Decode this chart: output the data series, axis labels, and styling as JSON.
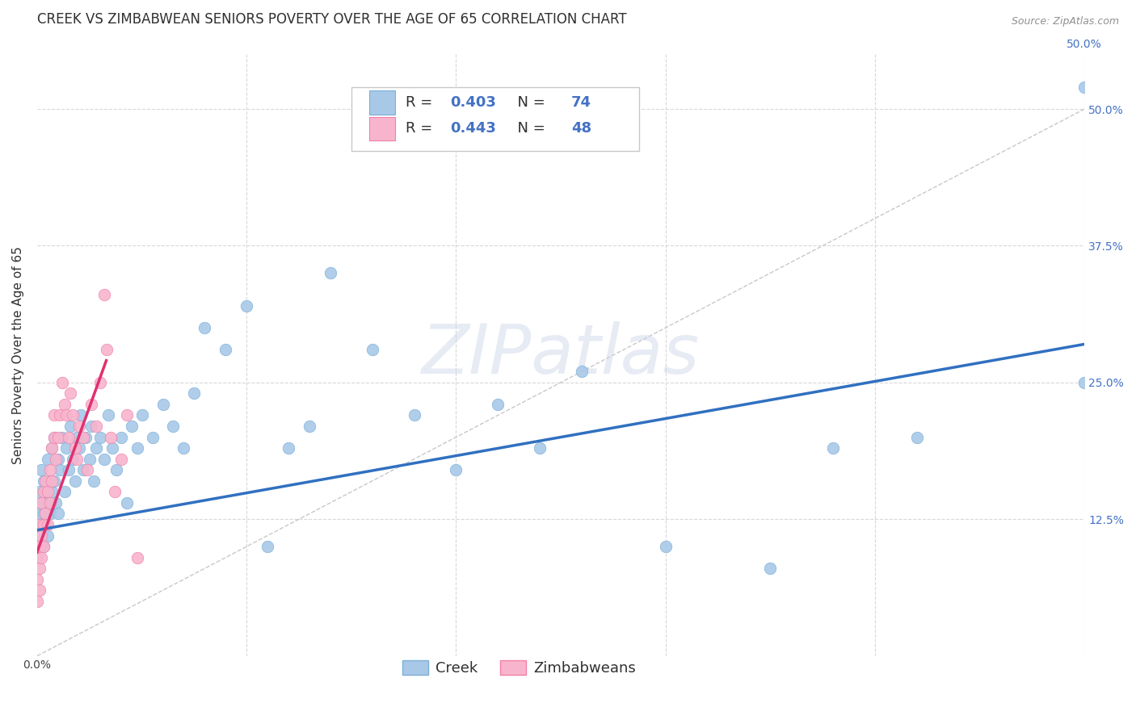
{
  "title": "CREEK VS ZIMBABWEAN SENIORS POVERTY OVER THE AGE OF 65 CORRELATION CHART",
  "source": "Source: ZipAtlas.com",
  "ylabel": "Seniors Poverty Over the Age of 65",
  "watermark": "ZIPatlas",
  "creek_color": "#a8c8e8",
  "creek_edge_color": "#7ab0d8",
  "zimb_color": "#f8b4cc",
  "zimb_edge_color": "#f080a8",
  "creek_line_color": "#3070c0",
  "zimb_line_color": "#e03070",
  "diagonal_color": "#c8c8c8",
  "grid_color": "#d8d8d8",
  "background_color": "#ffffff",
  "legend_text_color": "#4472c4",
  "title_color": "#303030",
  "source_color": "#909090",
  "ylabel_color": "#303030",
  "creek_R": "0.403",
  "creek_N": "74",
  "zimb_R": "0.443",
  "zimb_N": "48",
  "creek_x": [
    0.001,
    0.001,
    0.001,
    0.002,
    0.002,
    0.002,
    0.003,
    0.003,
    0.003,
    0.004,
    0.004,
    0.005,
    0.005,
    0.005,
    0.006,
    0.006,
    0.007,
    0.007,
    0.008,
    0.008,
    0.009,
    0.01,
    0.01,
    0.011,
    0.012,
    0.013,
    0.014,
    0.015,
    0.016,
    0.017,
    0.018,
    0.019,
    0.02,
    0.021,
    0.022,
    0.023,
    0.025,
    0.026,
    0.027,
    0.028,
    0.03,
    0.032,
    0.034,
    0.036,
    0.038,
    0.04,
    0.043,
    0.045,
    0.048,
    0.05,
    0.055,
    0.06,
    0.065,
    0.07,
    0.075,
    0.08,
    0.09,
    0.1,
    0.11,
    0.12,
    0.13,
    0.14,
    0.16,
    0.18,
    0.2,
    0.22,
    0.24,
    0.26,
    0.3,
    0.35,
    0.38,
    0.42,
    0.5,
    0.5
  ],
  "creek_y": [
    0.13,
    0.15,
    0.11,
    0.17,
    0.14,
    0.12,
    0.16,
    0.13,
    0.1,
    0.15,
    0.12,
    0.18,
    0.14,
    0.11,
    0.16,
    0.13,
    0.19,
    0.15,
    0.2,
    0.16,
    0.14,
    0.18,
    0.13,
    0.17,
    0.2,
    0.15,
    0.19,
    0.17,
    0.21,
    0.18,
    0.16,
    0.2,
    0.19,
    0.22,
    0.17,
    0.2,
    0.18,
    0.21,
    0.16,
    0.19,
    0.2,
    0.18,
    0.22,
    0.19,
    0.17,
    0.2,
    0.14,
    0.21,
    0.19,
    0.22,
    0.2,
    0.23,
    0.21,
    0.19,
    0.24,
    0.3,
    0.28,
    0.32,
    0.1,
    0.19,
    0.21,
    0.35,
    0.28,
    0.22,
    0.17,
    0.23,
    0.19,
    0.26,
    0.1,
    0.08,
    0.19,
    0.2,
    0.25,
    0.52
  ],
  "zimb_x": [
    0.0,
    0.0,
    0.0,
    0.0,
    0.001,
    0.001,
    0.001,
    0.001,
    0.002,
    0.002,
    0.002,
    0.003,
    0.003,
    0.003,
    0.004,
    0.004,
    0.005,
    0.005,
    0.006,
    0.006,
    0.007,
    0.007,
    0.008,
    0.008,
    0.009,
    0.01,
    0.011,
    0.012,
    0.013,
    0.014,
    0.015,
    0.016,
    0.017,
    0.018,
    0.019,
    0.02,
    0.022,
    0.024,
    0.026,
    0.028,
    0.03,
    0.032,
    0.033,
    0.035,
    0.037,
    0.04,
    0.043,
    0.048
  ],
  "zimb_y": [
    0.1,
    0.09,
    0.07,
    0.05,
    0.12,
    0.1,
    0.08,
    0.06,
    0.14,
    0.11,
    0.09,
    0.15,
    0.12,
    0.1,
    0.16,
    0.13,
    0.15,
    0.12,
    0.17,
    0.14,
    0.19,
    0.16,
    0.2,
    0.22,
    0.18,
    0.2,
    0.22,
    0.25,
    0.23,
    0.22,
    0.2,
    0.24,
    0.22,
    0.19,
    0.18,
    0.21,
    0.2,
    0.17,
    0.23,
    0.21,
    0.25,
    0.33,
    0.28,
    0.2,
    0.15,
    0.18,
    0.22,
    0.09
  ],
  "creek_line_x0": 0.0,
  "creek_line_y0": 0.115,
  "creek_line_x1": 0.5,
  "creek_line_y1": 0.285,
  "zimb_line_x0": 0.0,
  "zimb_line_y0": 0.095,
  "zimb_line_x1": 0.033,
  "zimb_line_y1": 0.27,
  "xlim": [
    0.0,
    0.5
  ],
  "ylim": [
    0.0,
    0.55
  ],
  "xtick_positions": [
    0.0,
    0.1,
    0.2,
    0.3,
    0.4,
    0.5
  ],
  "xtick_labels_bottom": [
    "0.0%",
    "",
    "",
    "",
    "",
    ""
  ],
  "xtick_labels_top": [
    "",
    "",
    "",
    "",
    "",
    "50.0%"
  ],
  "ytick_positions": [
    0.0,
    0.125,
    0.25,
    0.375,
    0.5
  ],
  "ytick_labels_right": [
    "",
    "12.5%",
    "25.0%",
    "37.5%",
    "50.0%"
  ],
  "title_fontsize": 12,
  "source_fontsize": 9,
  "axis_label_fontsize": 11,
  "tick_fontsize": 10,
  "legend_fontsize": 13,
  "watermark_fontsize": 62
}
